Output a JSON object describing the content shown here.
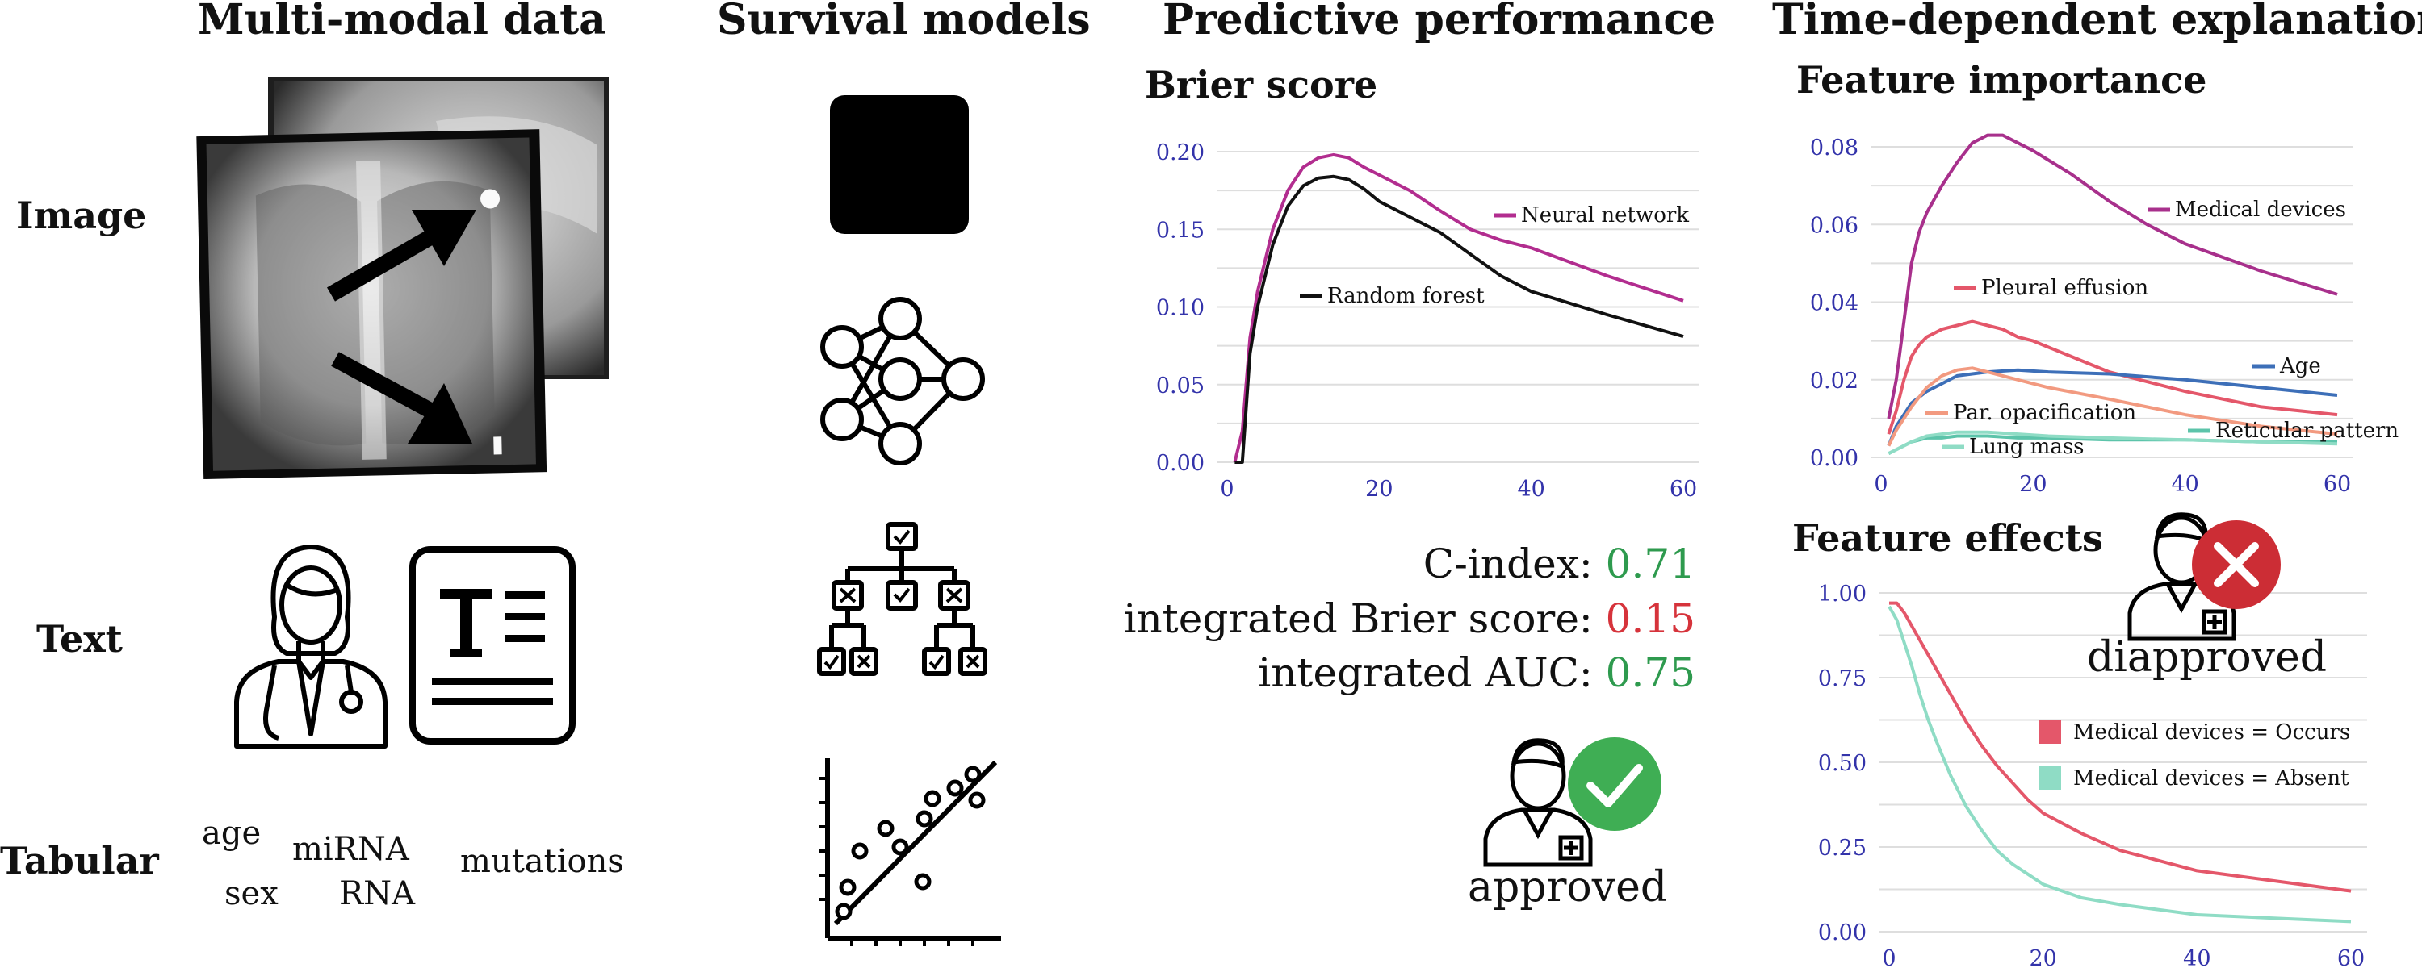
{
  "columns": {
    "multimodal": "Multi-modal data",
    "survival": "Survival models",
    "predictive": "Predictive performance",
    "explanations": "Time-dependent explanations"
  },
  "rows": {
    "image": "Image",
    "text": "Text",
    "tabular": "Tabular"
  },
  "tabular_words": {
    "age": "age",
    "sex": "sex",
    "mirna": "miRNA",
    "rna": "RNA",
    "mutations": "mutations"
  },
  "brier": {
    "title": "Brier score",
    "yticks": [
      "0.20",
      "0.15",
      "0.10",
      "0.05",
      "0.00"
    ],
    "xticks": [
      "0",
      "20",
      "40",
      "60"
    ]
  },
  "metrics": {
    "cindex_label": "C-index:",
    "cindex_value": "0.71",
    "ibs_label": "integrated Brier score:",
    "ibs_value": "0.15",
    "iauc_label": "integrated AUC:",
    "iauc_value": "0.75"
  },
  "approved": "approved",
  "importance": {
    "title": "Feature importance",
    "yticks": [
      "0.08",
      "0.06",
      "0.04",
      "0.02",
      "0.00"
    ],
    "xticks": [
      "0",
      "20",
      "40",
      "60"
    ]
  },
  "effects": {
    "title": "Feature effects",
    "yticks": [
      "1.00",
      "0.75",
      "0.50",
      "0.25",
      "0.00"
    ],
    "xticks": [
      "0",
      "20",
      "40",
      "60"
    ]
  },
  "disapproved": "diapproved",
  "colors": {
    "neural": "#b22d8f",
    "forest": "#111111",
    "medical": "#a8308c",
    "pleural": "#e4576a",
    "age": "#3d6fb8",
    "opac": "#f29a80",
    "reticular": "#5cc4aa",
    "lung": "#8fdcc5",
    "good": "#2e9a4e",
    "bad": "#d6333b",
    "axis": "#3333aa"
  },
  "chart_data": [
    {
      "type": "line",
      "title": "Brier score",
      "xlim": [
        0,
        60
      ],
      "ylim": [
        0,
        0.2
      ],
      "xticks": [
        0,
        20,
        40,
        60
      ],
      "yticks": [
        0,
        0.05,
        0.1,
        0.15,
        0.2
      ],
      "grid": true,
      "series": [
        {
          "name": "Neural network",
          "x": [
            1,
            2,
            3,
            4,
            5,
            6,
            8,
            10,
            12,
            14,
            16,
            18,
            20,
            24,
            28,
            32,
            36,
            40,
            50,
            60
          ],
          "y": [
            0,
            0.02,
            0.08,
            0.11,
            0.13,
            0.15,
            0.175,
            0.19,
            0.196,
            0.198,
            0.196,
            0.19,
            0.185,
            0.175,
            0.162,
            0.15,
            0.143,
            0.138,
            0.12,
            0.104
          ]
        },
        {
          "name": "Random forest",
          "x": [
            1,
            2,
            3,
            4,
            5,
            6,
            8,
            10,
            12,
            14,
            16,
            18,
            20,
            24,
            28,
            32,
            36,
            40,
            50,
            60
          ],
          "y": [
            0,
            0,
            0.07,
            0.1,
            0.12,
            0.14,
            0.165,
            0.178,
            0.183,
            0.184,
            0.182,
            0.176,
            0.168,
            0.158,
            0.148,
            0.134,
            0.12,
            0.11,
            0.095,
            0.081
          ]
        }
      ]
    },
    {
      "type": "line",
      "title": "Feature importance",
      "xlim": [
        0,
        60
      ],
      "ylim": [
        0,
        0.08
      ],
      "xticks": [
        0,
        20,
        40,
        60
      ],
      "yticks": [
        0,
        0.02,
        0.04,
        0.06,
        0.08
      ],
      "grid": true,
      "series": [
        {
          "name": "Medical devices",
          "x": [
            1,
            2,
            3,
            4,
            5,
            6,
            8,
            10,
            12,
            14,
            16,
            18,
            20,
            25,
            30,
            35,
            40,
            50,
            60
          ],
          "y": [
            0.01,
            0.02,
            0.035,
            0.05,
            0.058,
            0.063,
            0.07,
            0.076,
            0.081,
            0.083,
            0.083,
            0.081,
            0.079,
            0.073,
            0.066,
            0.06,
            0.055,
            0.048,
            0.042
          ]
        },
        {
          "name": "Pleural effusion",
          "x": [
            1,
            2,
            3,
            4,
            5,
            6,
            8,
            10,
            12,
            14,
            16,
            18,
            20,
            25,
            30,
            40,
            50,
            60
          ],
          "y": [
            0.006,
            0.012,
            0.02,
            0.026,
            0.029,
            0.031,
            0.033,
            0.034,
            0.035,
            0.034,
            0.033,
            0.031,
            0.03,
            0.026,
            0.022,
            0.017,
            0.013,
            0.011
          ]
        },
        {
          "name": "Age",
          "x": [
            1,
            2,
            4,
            6,
            8,
            10,
            14,
            18,
            22,
            30,
            40,
            50,
            60
          ],
          "y": [
            0.003,
            0.008,
            0.014,
            0.017,
            0.019,
            0.021,
            0.022,
            0.0225,
            0.022,
            0.0215,
            0.02,
            0.018,
            0.016
          ]
        },
        {
          "name": "Par. opacification",
          "x": [
            1,
            2,
            4,
            6,
            8,
            10,
            12,
            14,
            18,
            22,
            30,
            40,
            50,
            60
          ],
          "y": [
            0.003,
            0.007,
            0.013,
            0.018,
            0.021,
            0.0225,
            0.023,
            0.022,
            0.02,
            0.018,
            0.015,
            0.011,
            0.008,
            0.006
          ]
        },
        {
          "name": "Reticular pattern",
          "x": [
            1,
            2,
            4,
            6,
            8,
            10,
            14,
            18,
            22,
            30,
            40,
            50,
            60
          ],
          "y": [
            0.001,
            0.002,
            0.004,
            0.005,
            0.005,
            0.0055,
            0.0055,
            0.005,
            0.005,
            0.0045,
            0.0045,
            0.004,
            0.004
          ]
        },
        {
          "name": "Lung mass",
          "x": [
            1,
            2,
            4,
            6,
            8,
            10,
            14,
            18,
            22,
            30,
            40,
            50,
            60
          ],
          "y": [
            0.001,
            0.002,
            0.004,
            0.0055,
            0.006,
            0.0065,
            0.0065,
            0.006,
            0.0055,
            0.005,
            0.0045,
            0.004,
            0.0035
          ]
        }
      ]
    },
    {
      "type": "line",
      "title": "Feature effects",
      "xlim": [
        0,
        60
      ],
      "ylim": [
        0,
        1
      ],
      "xticks": [
        0,
        20,
        40,
        60
      ],
      "yticks": [
        0,
        0.25,
        0.5,
        0.75,
        1.0
      ],
      "grid": true,
      "series": [
        {
          "name": "Medical devices = Occurs",
          "x": [
            0,
            1,
            2,
            3,
            4,
            5,
            6,
            8,
            10,
            12,
            14,
            16,
            18,
            20,
            25,
            30,
            35,
            40,
            50,
            60
          ],
          "y": [
            0.97,
            0.97,
            0.94,
            0.9,
            0.86,
            0.82,
            0.78,
            0.7,
            0.62,
            0.55,
            0.49,
            0.44,
            0.39,
            0.35,
            0.29,
            0.24,
            0.21,
            0.18,
            0.15,
            0.12
          ]
        },
        {
          "name": "Medical devices = Absent",
          "x": [
            0,
            1,
            2,
            3,
            4,
            5,
            6,
            8,
            10,
            12,
            14,
            16,
            18,
            20,
            25,
            30,
            35,
            40,
            50,
            60
          ],
          "y": [
            0.96,
            0.92,
            0.85,
            0.78,
            0.7,
            0.63,
            0.57,
            0.46,
            0.37,
            0.3,
            0.24,
            0.2,
            0.17,
            0.14,
            0.1,
            0.08,
            0.065,
            0.05,
            0.04,
            0.03
          ]
        }
      ]
    }
  ]
}
